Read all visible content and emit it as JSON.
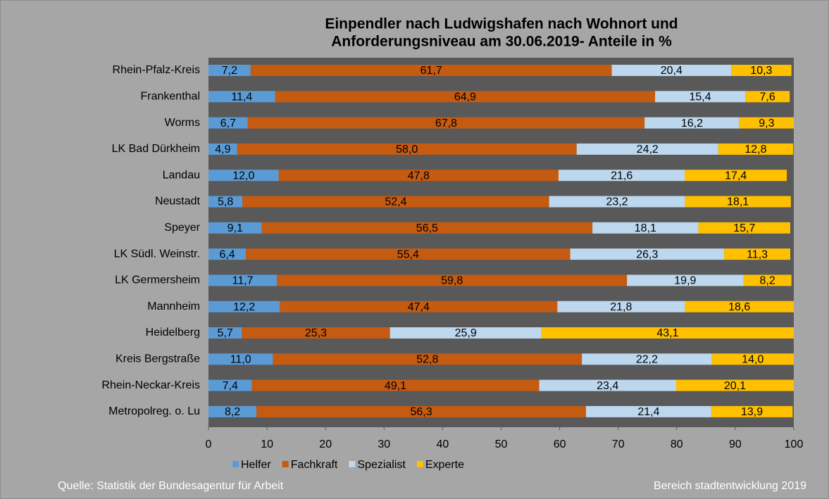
{
  "chart_data": {
    "type": "stacked_barh",
    "title": [
      "Einpendler nach Ludwigshafen nach Wohnort und",
      "Anforderungsniveau am 30.06.2019- Anteile in %"
    ],
    "categories": [
      "Rhein-Pfalz-Kreis",
      "Frankenthal",
      "Worms",
      "LK Bad Dürkheim",
      "Landau",
      "Neustadt",
      "Speyer",
      "LK Südl. Weinstr.",
      "LK Germersheim",
      "Mannheim",
      "Heidelberg",
      "Kreis Bergstraße",
      "Rhein-Neckar-Kreis",
      "Metropolreg. o. Lu"
    ],
    "series": [
      {
        "name": "Helfer",
        "color": "#5b9bd5",
        "values": [
          7.2,
          11.4,
          6.7,
          4.9,
          12.0,
          5.8,
          9.1,
          6.4,
          11.7,
          12.2,
          5.7,
          11.0,
          7.4,
          8.2
        ],
        "value_labels": [
          "7,2",
          "11,4",
          "6,7",
          "4,9",
          "12,0",
          "5,8",
          "9,1",
          "6,4",
          "11,7",
          "12,2",
          "5,7",
          "11,0",
          "7,4",
          "8,2"
        ]
      },
      {
        "name": "Fachkraft",
        "color": "#c55a11",
        "values": [
          61.7,
          64.9,
          67.8,
          58.0,
          47.8,
          52.4,
          56.5,
          55.4,
          59.8,
          47.4,
          25.3,
          52.8,
          49.1,
          56.3
        ],
        "value_labels": [
          "61,7",
          "64,9",
          "67,8",
          "58,0",
          "47,8",
          "52,4",
          "56,5",
          "55,4",
          "59,8",
          "47,4",
          "25,3",
          "52,8",
          "49,1",
          "56,3"
        ]
      },
      {
        "name": "Spezialist",
        "color": "#bdd7ee",
        "values": [
          20.4,
          15.4,
          16.2,
          24.2,
          21.6,
          23.2,
          18.1,
          26.3,
          19.9,
          21.8,
          25.9,
          22.2,
          23.4,
          21.4
        ],
        "value_labels": [
          "20,4",
          "15,4",
          "16,2",
          "24,2",
          "21,6",
          "23,2",
          "18,1",
          "26,3",
          "19,9",
          "21,8",
          "25,9",
          "22,2",
          "23,4",
          "21,4"
        ]
      },
      {
        "name": "Experte",
        "color": "#ffc000",
        "values": [
          10.3,
          7.6,
          9.3,
          12.8,
          17.4,
          18.1,
          15.7,
          11.3,
          8.2,
          18.6,
          43.1,
          14.0,
          20.1,
          13.9
        ],
        "value_labels": [
          "10,3",
          "7,6",
          "9,3",
          "12,8",
          "17,4",
          "18,1",
          "15,7",
          "11,3",
          "8,2",
          "18,6",
          "43,1",
          "14,0",
          "20,1",
          "13,9"
        ]
      }
    ],
    "xlim": [
      0,
      100
    ],
    "xticks": [
      0,
      10,
      20,
      30,
      40,
      50,
      60,
      70,
      80,
      90,
      100
    ],
    "legend": "bottom",
    "source": "Quelle: Statistik der Bundesagentur für Arbeit",
    "credit": "Bereich stadtentwicklung 2019"
  }
}
